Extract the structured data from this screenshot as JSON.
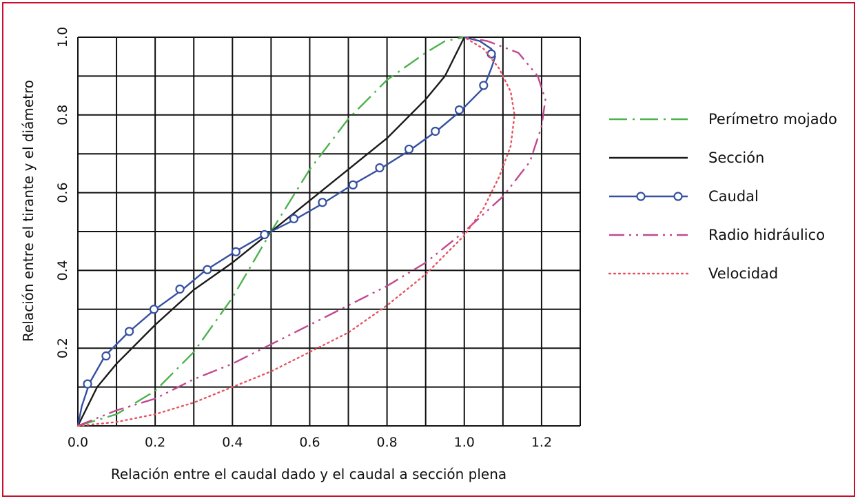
{
  "chart_data": {
    "type": "line",
    "title": "",
    "xlabel": "Relación entre el caudal dado y el caudal a sección plena",
    "ylabel": "Relación entre el tirante y el diámetro",
    "xlim": [
      0,
      1.3
    ],
    "ylim": [
      0,
      1.0
    ],
    "grid": true,
    "x_grid_step": 0.1,
    "y_grid_step": 0.1,
    "x_ticks": [
      "0.0",
      "0.2",
      "0.4",
      "0.6",
      "0.8",
      "1.0",
      "1.2"
    ],
    "y_ticks": [
      "0.2",
      "0.4",
      "0.6",
      "0.8",
      "1.0"
    ],
    "legend_position": "right",
    "series": [
      {
        "name": "Perímetro mojado",
        "color": "#4cb24c",
        "style": "dash-dot",
        "x": [
          0.0,
          0.1,
          0.2,
          0.3,
          0.4,
          0.5,
          0.6,
          0.7,
          0.8,
          0.9,
          0.95,
          1.0
        ],
        "y": [
          0.0,
          0.03,
          0.09,
          0.19,
          0.33,
          0.5,
          0.66,
          0.79,
          0.89,
          0.96,
          0.99,
          1.0
        ]
      },
      {
        "name": "Sección",
        "color": "#1a1a1a",
        "style": "solid",
        "x": [
          0.0,
          0.05,
          0.1,
          0.2,
          0.3,
          0.4,
          0.5,
          0.6,
          0.7,
          0.8,
          0.9,
          0.95,
          1.0
        ],
        "y": [
          0.0,
          0.1,
          0.16,
          0.26,
          0.35,
          0.42,
          0.5,
          0.58,
          0.66,
          0.74,
          0.84,
          0.9,
          1.0
        ]
      },
      {
        "name": "Caudal",
        "color": "#3550a0",
        "style": "solid-circles",
        "x": [
          0.0,
          0.01,
          0.03,
          0.07,
          0.13,
          0.2,
          0.27,
          0.33,
          0.41,
          0.48,
          0.56,
          0.63,
          0.71,
          0.78,
          0.86,
          0.93,
          0.99,
          1.05,
          1.07,
          1.08,
          1.07,
          1.04,
          1.0
        ],
        "y": [
          0.0,
          0.05,
          0.11,
          0.18,
          0.24,
          0.3,
          0.35,
          0.4,
          0.45,
          0.49,
          0.53,
          0.57,
          0.62,
          0.66,
          0.71,
          0.76,
          0.81,
          0.87,
          0.92,
          0.95,
          0.97,
          0.99,
          1.0
        ],
        "markers_x": [
          0.025,
          0.073,
          0.133,
          0.197,
          0.264,
          0.335,
          0.409,
          0.483,
          0.559,
          0.633,
          0.712,
          0.781,
          0.857,
          0.925,
          0.987,
          1.05,
          1.07
        ],
        "markers_y": [
          0.108,
          0.18,
          0.243,
          0.3,
          0.352,
          0.402,
          0.448,
          0.492,
          0.533,
          0.575,
          0.62,
          0.664,
          0.712,
          0.758,
          0.813,
          0.876,
          0.957
        ]
      },
      {
        "name": "Radio hidráulico",
        "color": "#c0488f",
        "style": "dash-dot-dot",
        "x": [
          0.0,
          0.1,
          0.2,
          0.3,
          0.4,
          0.5,
          0.6,
          0.7,
          0.8,
          0.9,
          1.0,
          1.1,
          1.17,
          1.2,
          1.21,
          1.19,
          1.14,
          1.06,
          1.0
        ],
        "y": [
          0.0,
          0.04,
          0.07,
          0.12,
          0.16,
          0.21,
          0.26,
          0.31,
          0.36,
          0.42,
          0.5,
          0.59,
          0.68,
          0.77,
          0.84,
          0.9,
          0.96,
          0.99,
          1.0
        ]
      },
      {
        "name": "Velocidad",
        "color": "#e8525e",
        "style": "dotted",
        "x": [
          0.0,
          0.1,
          0.2,
          0.3,
          0.4,
          0.5,
          0.6,
          0.7,
          0.8,
          0.9,
          1.0,
          1.05,
          1.09,
          1.12,
          1.13,
          1.12,
          1.09,
          1.05,
          1.0
        ],
        "y": [
          0.0,
          0.01,
          0.03,
          0.06,
          0.1,
          0.14,
          0.19,
          0.24,
          0.31,
          0.39,
          0.49,
          0.56,
          0.64,
          0.72,
          0.8,
          0.86,
          0.92,
          0.97,
          1.0
        ]
      }
    ]
  }
}
